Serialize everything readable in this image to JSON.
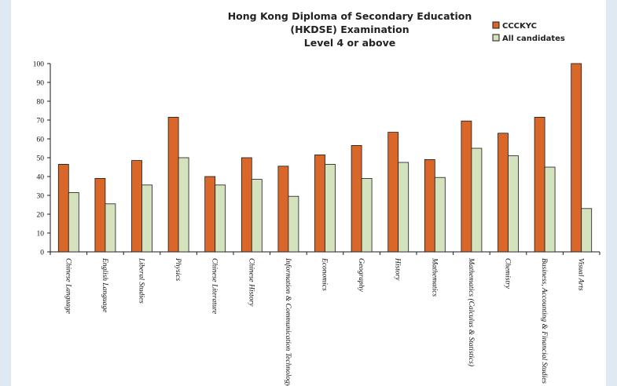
{
  "colors": {
    "series_a": "#d9672a",
    "series_b": "#d4e2be",
    "stroke": "#1a1a1a"
  },
  "chart_data": {
    "type": "bar",
    "title": [
      "Hong Kong Diploma of Secondary Education",
      "(HKDSE) Examination",
      "Level 4 or above"
    ],
    "xlabel": "",
    "ylabel": "",
    "ylim": [
      0,
      100
    ],
    "yticks": [
      0,
      10,
      20,
      30,
      40,
      50,
      60,
      70,
      80,
      90,
      100
    ],
    "grid": false,
    "legend": "top-right",
    "categories": [
      "Chinese Language",
      "English Language",
      "Liberal Studies",
      "Physics",
      "Chinese Literature",
      "Chinese History",
      "Information & Communication Technology",
      "Economics",
      "Geography",
      "History",
      "Mathematics",
      "Mathematics (Calculus & Statistics)",
      "Chemistry",
      "Business, Accounting & Financial Studies",
      "Visual Arts"
    ],
    "series": [
      {
        "name": "CCCKYC",
        "values": [
          46.5,
          39,
          48.5,
          71.5,
          40,
          50,
          45.5,
          51.5,
          56.5,
          63.5,
          49,
          69.5,
          63,
          71.5,
          100
        ]
      },
      {
        "name": "All candidates",
        "values": [
          31.5,
          25.5,
          35.5,
          50,
          35.5,
          38.5,
          29.5,
          46.5,
          39,
          47.5,
          39.5,
          55,
          51,
          45,
          23
        ]
      }
    ]
  }
}
